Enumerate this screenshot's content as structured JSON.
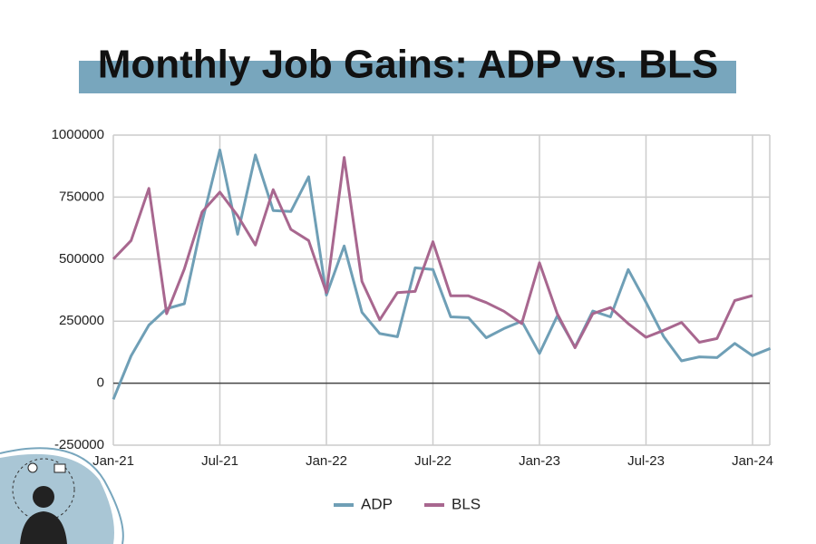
{
  "chart_data": {
    "type": "line",
    "title": "Monthly Job Gains: ADP vs. BLS",
    "categories": [
      "Jan-21",
      null,
      null,
      null,
      null,
      null,
      "Jul-21",
      null,
      null,
      null,
      null,
      null,
      "Jan-22",
      null,
      null,
      null,
      null,
      null,
      "Jul-22",
      null,
      null,
      null,
      null,
      null,
      "Jan-23",
      null,
      null,
      null,
      null,
      null,
      "Jul-23",
      null,
      null,
      null,
      null,
      null,
      "Jan-24",
      null
    ],
    "series": [
      {
        "name": "ADP",
        "color": "#6f9fb6",
        "values": [
          -65000,
          110000,
          234000,
          300000,
          320000,
          650000,
          940000,
          600000,
          920000,
          696000,
          692000,
          832000,
          355000,
          553000,
          286000,
          200000,
          187000,
          465000,
          458000,
          267000,
          264000,
          183000,
          220000,
          250000,
          120000,
          271000,
          146000,
          291000,
          267000,
          458000,
          326000,
          187000,
          90000,
          106000,
          103000,
          160000,
          111000,
          140000
        ]
      },
      {
        "name": "BLS",
        "color": "#a8678f",
        "values": [
          500000,
          575000,
          785000,
          280000,
          460000,
          690000,
          770000,
          675000,
          557000,
          780000,
          620000,
          575000,
          365000,
          910000,
          410000,
          255000,
          365000,
          370000,
          570000,
          352000,
          352000,
          325000,
          290000,
          240000,
          485000,
          280000,
          143000,
          280000,
          305000,
          240000,
          185000,
          213000,
          245000,
          165000,
          180000,
          333000,
          353000,
          null
        ]
      }
    ],
    "ylim": [
      -250000,
      1000000
    ],
    "yticks": [
      -250000,
      0,
      250000,
      500000,
      750000,
      1000000
    ],
    "grid": true,
    "legend": "bottom"
  }
}
